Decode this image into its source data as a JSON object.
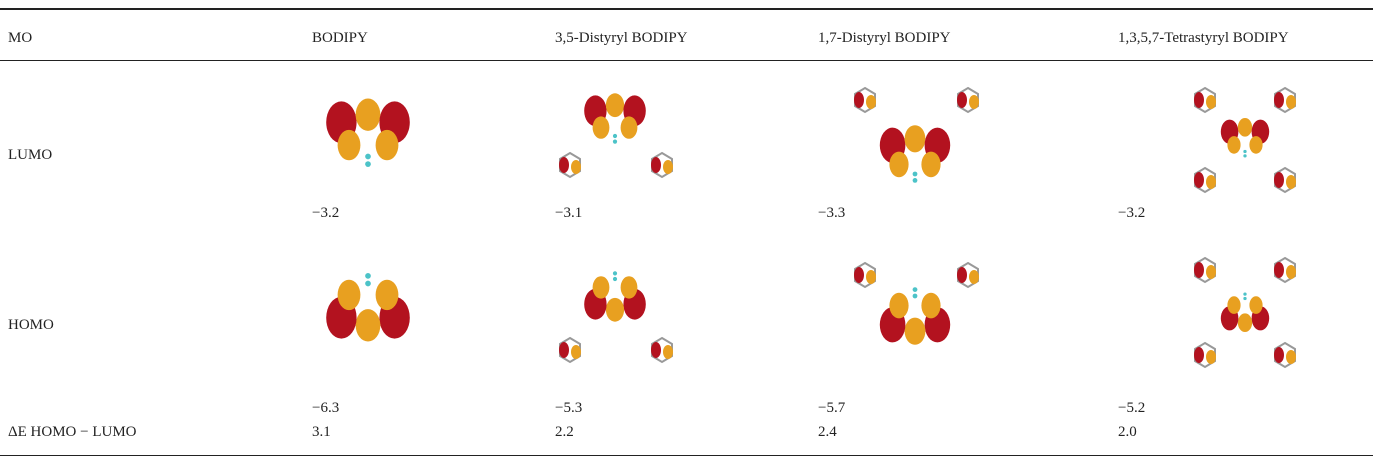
{
  "table": {
    "header": [
      "MO",
      "BODIPY",
      "3,5-Distyryl BODIPY",
      "1,7-Distyryl BODIPY",
      "1,3,5,7-Tetrastyryl BODIPY"
    ],
    "rows": [
      {
        "label": "LUMO",
        "values": [
          "−3.2",
          "−3.1",
          "−3.3",
          "−3.2"
        ]
      },
      {
        "label": "HOMO",
        "values": [
          "−6.3",
          "−5.3",
          "−5.7",
          "−5.2"
        ]
      },
      {
        "label": "ΔE HOMO − LUMO",
        "values": [
          "3.1",
          "2.2",
          "2.4",
          "2.0"
        ]
      }
    ]
  }
}
